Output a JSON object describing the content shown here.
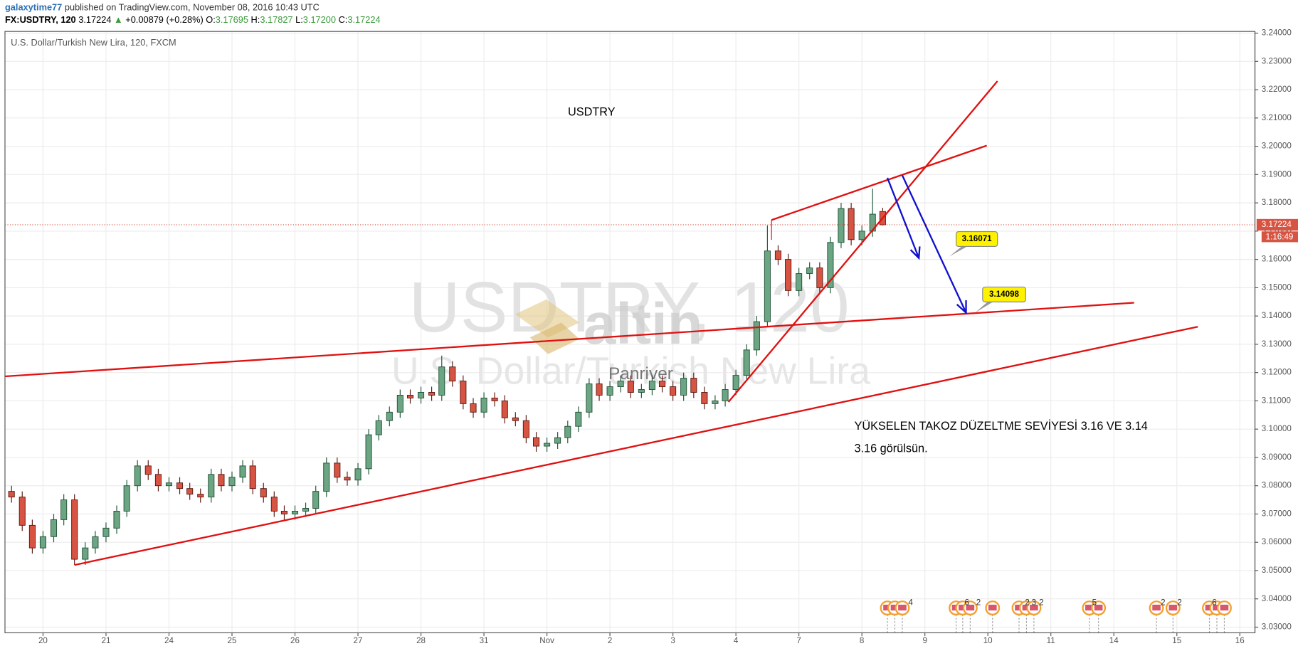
{
  "header": {
    "user": "galaxytime77",
    "published": "published on TradingView.com, November 08, 2016 10:43 UTC",
    "symbol": "FX:USDTRY, 120",
    "last": "3.17224",
    "arrow": "▲",
    "change": "+0.00879 (+0.28%)",
    "ohlc": [
      {
        "label": "O:",
        "value": "3.17695"
      },
      {
        "label": "H:",
        "value": "3.17827"
      },
      {
        "label": "L:",
        "value": "3.17200"
      },
      {
        "label": "C:",
        "value": "3.17224"
      }
    ]
  },
  "chart_data": {
    "type": "candlestick",
    "title": "U.S. Dollar/Turkish New Lira, 120, FXCM",
    "watermark": {
      "symbol": "USDTRY, 120",
      "name": "U.S. Dollar/Turkish New Lira",
      "logo": "altin",
      "brand": "Panriver"
    },
    "annotations": {
      "label": "USDTRY",
      "note1": "YÜKSELEN TAKOZ DÜZELTME SEVİYESİ 3.16 VE 3.14",
      "note2": "3.16 görülsün.",
      "target1": "3.16071",
      "target2": "3.14098"
    },
    "price_tag": "3.17224",
    "countdown": "1:16:49",
    "event_labels": [
      "4",
      "6",
      "2",
      "2",
      "3",
      "2",
      "5",
      "2",
      "2",
      "6"
    ],
    "colors": {
      "up": "#6ba583",
      "down": "#d75442",
      "up_border": "#225437",
      "down_border": "#5b1a13"
    },
    "grid": true,
    "xlim": [
      -0.604,
      19.24
    ],
    "xticks": [
      {
        "value": 0,
        "label": "20"
      },
      {
        "value": 1,
        "label": "21"
      },
      {
        "value": 2,
        "label": "24"
      },
      {
        "value": 3,
        "label": "25"
      },
      {
        "value": 4,
        "label": "26"
      },
      {
        "value": 5,
        "label": "27"
      },
      {
        "value": 6,
        "label": "28"
      },
      {
        "value": 7,
        "label": "31"
      },
      {
        "value": 8,
        "label": "Nov"
      },
      {
        "value": 9,
        "label": "2"
      },
      {
        "value": 10,
        "label": "3"
      },
      {
        "value": 11,
        "label": "4"
      },
      {
        "value": 12,
        "label": "7"
      },
      {
        "value": 13,
        "label": "8"
      },
      {
        "value": 14,
        "label": "9"
      },
      {
        "value": 15,
        "label": "10"
      },
      {
        "value": 16,
        "label": "11"
      },
      {
        "value": 17,
        "label": "14"
      },
      {
        "value": 18,
        "label": "15"
      },
      {
        "value": 19,
        "label": "16"
      }
    ],
    "ylim": [
      3.028,
      3.2406
    ],
    "yticks": [
      {
        "value": 3.03,
        "label": "3.03000"
      },
      {
        "value": 3.04,
        "label": "3.04000"
      },
      {
        "value": 3.05,
        "label": "3.05000"
      },
      {
        "value": 3.06,
        "label": "3.06000"
      },
      {
        "value": 3.07,
        "label": "3.07000"
      },
      {
        "value": 3.08,
        "label": "3.08000"
      },
      {
        "value": 3.09,
        "label": "3.09000"
      },
      {
        "value": 3.1,
        "label": "3.10000"
      },
      {
        "value": 3.11,
        "label": "3.11000"
      },
      {
        "value": 3.12,
        "label": "3.12000"
      },
      {
        "value": 3.13,
        "label": "3.13000"
      },
      {
        "value": 3.14,
        "label": "3.14000"
      },
      {
        "value": 3.15,
        "label": "3.15000"
      },
      {
        "value": 3.16,
        "label": "3.16000"
      },
      {
        "value": 3.17,
        "label": "3.17000"
      },
      {
        "value": 3.18,
        "label": "3.18000"
      },
      {
        "value": 3.19,
        "label": "3.19000"
      },
      {
        "value": 3.2,
        "label": "3.20000"
      },
      {
        "value": 3.21,
        "label": "3.21000"
      },
      {
        "value": 3.22,
        "label": "3.22000"
      },
      {
        "value": 3.23,
        "label": "3.23000"
      },
      {
        "value": 3.24,
        "label": "3.24000"
      }
    ],
    "x": [
      -0.5,
      -0.33,
      -0.17,
      0,
      0.17,
      0.33,
      0.5,
      0.67,
      0.83,
      1,
      1.17,
      1.33,
      1.5,
      1.67,
      1.83,
      2,
      2.17,
      2.33,
      2.5,
      2.67,
      2.83,
      3,
      3.17,
      3.33,
      3.5,
      3.67,
      3.83,
      4,
      4.17,
      4.33,
      4.5,
      4.67,
      4.83,
      5,
      5.17,
      5.33,
      5.5,
      5.67,
      5.83,
      6,
      6.17,
      6.33,
      6.5,
      6.67,
      6.83,
      7,
      7.17,
      7.33,
      7.5,
      7.67,
      7.83,
      8,
      8.17,
      8.33,
      8.5,
      8.67,
      8.83,
      9,
      9.17,
      9.33,
      9.5,
      9.67,
      9.83,
      10,
      10.17,
      10.33,
      10.5,
      10.67,
      10.83,
      11,
      11.17,
      11.33,
      11.5,
      11.67,
      11.83,
      12,
      12.17,
      12.33,
      12.5,
      12.67,
      12.83,
      13,
      13.17,
      13.33
    ],
    "open": [
      3.078,
      3.076,
      3.066,
      3.058,
      3.062,
      3.068,
      3.075,
      3.054,
      3.058,
      3.062,
      3.065,
      3.071,
      3.08,
      3.087,
      3.084,
      3.08,
      3.081,
      3.079,
      3.077,
      3.076,
      3.084,
      3.08,
      3.083,
      3.087,
      3.079,
      3.076,
      3.071,
      3.07,
      3.071,
      3.072,
      3.078,
      3.088,
      3.083,
      3.082,
      3.086,
      3.098,
      3.103,
      3.106,
      3.112,
      3.111,
      3.113,
      3.112,
      3.122,
      3.117,
      3.109,
      3.106,
      3.111,
      3.11,
      3.104,
      3.103,
      3.097,
      3.094,
      3.095,
      3.097,
      3.101,
      3.106,
      3.116,
      3.112,
      3.115,
      3.117,
      3.113,
      3.114,
      3.117,
      3.115,
      3.112,
      3.118,
      3.113,
      3.109,
      3.11,
      3.114,
      3.119,
      3.128,
      3.138,
      3.163,
      3.16,
      3.149,
      3.155,
      3.157,
      3.15,
      3.166,
      3.178,
      3.167,
      3.17,
      3.17695
    ],
    "high": [
      3.08,
      3.078,
      3.068,
      3.064,
      3.07,
      3.077,
      3.077,
      3.06,
      3.064,
      3.067,
      3.073,
      3.082,
      3.089,
      3.089,
      3.086,
      3.083,
      3.083,
      3.081,
      3.079,
      3.086,
      3.086,
      3.085,
      3.089,
      3.089,
      3.081,
      3.078,
      3.073,
      3.073,
      3.074,
      3.08,
      3.09,
      3.09,
      3.085,
      3.088,
      3.1,
      3.105,
      3.108,
      3.114,
      3.114,
      3.115,
      3.115,
      3.126,
      3.124,
      3.119,
      3.111,
      3.113,
      3.113,
      3.112,
      3.106,
      3.105,
      3.099,
      3.097,
      3.099,
      3.103,
      3.108,
      3.118,
      3.118,
      3.117,
      3.119,
      3.119,
      3.116,
      3.119,
      3.119,
      3.117,
      3.12,
      3.12,
      3.115,
      3.112,
      3.116,
      3.121,
      3.13,
      3.14,
      3.172,
      3.165,
      3.162,
      3.157,
      3.159,
      3.159,
      3.168,
      3.18,
      3.18,
      3.172,
      3.185,
      3.17827
    ],
    "low": [
      3.074,
      3.064,
      3.056,
      3.056,
      3.06,
      3.066,
      3.052,
      3.052,
      3.056,
      3.06,
      3.063,
      3.069,
      3.078,
      3.082,
      3.078,
      3.078,
      3.077,
      3.075,
      3.074,
      3.074,
      3.078,
      3.078,
      3.081,
      3.077,
      3.074,
      3.069,
      3.068,
      3.068,
      3.069,
      3.07,
      3.076,
      3.081,
      3.08,
      3.08,
      3.084,
      3.096,
      3.101,
      3.104,
      3.109,
      3.109,
      3.11,
      3.11,
      3.115,
      3.107,
      3.104,
      3.104,
      3.108,
      3.102,
      3.101,
      3.095,
      3.092,
      3.092,
      3.093,
      3.095,
      3.099,
      3.104,
      3.11,
      3.11,
      3.113,
      3.111,
      3.111,
      3.112,
      3.113,
      3.11,
      3.11,
      3.111,
      3.107,
      3.107,
      3.108,
      3.112,
      3.117,
      3.126,
      3.136,
      3.158,
      3.147,
      3.147,
      3.153,
      3.148,
      3.148,
      3.164,
      3.165,
      3.165,
      3.168,
      3.172
    ],
    "close": [
      3.076,
      3.066,
      3.058,
      3.062,
      3.068,
      3.075,
      3.054,
      3.058,
      3.062,
      3.065,
      3.071,
      3.08,
      3.087,
      3.084,
      3.08,
      3.081,
      3.079,
      3.077,
      3.076,
      3.084,
      3.08,
      3.083,
      3.087,
      3.079,
      3.076,
      3.071,
      3.07,
      3.071,
      3.072,
      3.078,
      3.088,
      3.083,
      3.082,
      3.086,
      3.098,
      3.103,
      3.106,
      3.112,
      3.111,
      3.113,
      3.112,
      3.122,
      3.117,
      3.109,
      3.106,
      3.111,
      3.11,
      3.104,
      3.103,
      3.097,
      3.094,
      3.095,
      3.097,
      3.101,
      3.106,
      3.116,
      3.112,
      3.115,
      3.117,
      3.113,
      3.114,
      3.117,
      3.115,
      3.112,
      3.118,
      3.113,
      3.109,
      3.11,
      3.114,
      3.119,
      3.128,
      3.138,
      3.163,
      3.16,
      3.149,
      3.155,
      3.157,
      3.15,
      3.166,
      3.178,
      3.167,
      3.17,
      3.176,
      3.17224
    ]
  }
}
